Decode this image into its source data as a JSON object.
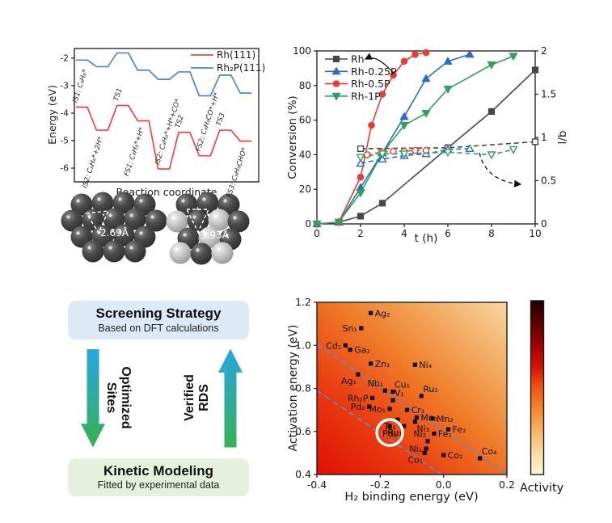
{
  "chart_data": [
    {
      "id": "energy-diagram",
      "type": "line",
      "xlabel": "Reaction coordinate",
      "ylabel": "Energy (eV)",
      "ylim": [
        -6.5,
        -1.65
      ],
      "yticks": [
        "-2",
        "-3",
        "-4",
        "-5",
        "-6"
      ],
      "legend_position": "top-right",
      "series": [
        {
          "name": "Rh(111)",
          "color": "#f14544",
          "values": [
            -3.78,
            -4.62,
            -3.72,
            -4.28,
            -6.03,
            -4.7,
            -5.55,
            -4.62,
            -5.02
          ],
          "step_labels": [
            {
              "text": "IS1: C₈H₈*",
              "pos": "above"
            },
            {
              "text": "IS2: C₈H₈*+2H*",
              "pos": "below"
            },
            {
              "text": "TS1",
              "pos": "above"
            },
            {
              "text": "FS1: C₈H₉*+H*",
              "pos": "below"
            },
            {
              "text": "IS2: C₈H₉*+H*+CO*",
              "pos": "above"
            },
            {
              "text": "TS2",
              "pos": "above"
            },
            {
              "text": "FS2: C₈H₉CO*+H*",
              "pos": "above"
            },
            {
              "text": "TS3",
              "pos": "above"
            },
            {
              "text": "FS3: C₈H₉CHO*",
              "pos": "below"
            }
          ]
        },
        {
          "name": "Rh₂P(111)",
          "color": "#4a86d8",
          "values": [
            -2.07,
            -2.31,
            -1.81,
            -2.44,
            -2.77,
            -2.5,
            -3.37,
            -2.62,
            -3.27
          ]
        }
      ]
    },
    {
      "id": "kinetics",
      "type": "line",
      "xlabel": "t (h)",
      "ylabel": "Conversion (%)",
      "ylabel2": "l/b",
      "xlim": [
        0,
        10
      ],
      "xticks": [
        "0",
        "2",
        "4",
        "6",
        "8",
        "10"
      ],
      "ylim": [
        0,
        100
      ],
      "yticks": [
        "0",
        "20",
        "40",
        "60",
        "80",
        "100"
      ],
      "y2lim": [
        0,
        2
      ],
      "y2ticks": [
        "0",
        "0.5",
        "1",
        "1.5",
        "2"
      ],
      "legend": [
        "Rh",
        "Rh-0.25P",
        "Rh-0.5P",
        "Rh-1P"
      ],
      "series": [
        {
          "name": "Rh",
          "color": "#474747",
          "marker": "square",
          "fill": "filled",
          "axis": "left",
          "x": [
            0,
            1,
            2,
            3,
            6,
            8,
            10
          ],
          "y": [
            0,
            1,
            4.5,
            12,
            44,
            65,
            89
          ]
        },
        {
          "name": "Rh-0.25P",
          "color": "#2a6cc0",
          "marker": "triangle-up",
          "fill": "filled",
          "axis": "left",
          "x": [
            0,
            1,
            2,
            3,
            4,
            5,
            6,
            7
          ],
          "y": [
            0,
            1,
            21,
            41,
            62,
            84,
            94,
            98
          ]
        },
        {
          "name": "Rh-0.5P",
          "color": "#e63e36",
          "marker": "circle",
          "fill": "filled",
          "axis": "left",
          "x": [
            0,
            1,
            2,
            2.5,
            3,
            3.5,
            4,
            4.5,
            5
          ],
          "y": [
            0,
            1,
            27,
            57,
            75,
            86,
            94,
            98,
            99
          ]
        },
        {
          "name": "Rh-1P",
          "color": "#31a05f",
          "marker": "triangle-down",
          "fill": "filled",
          "axis": "left",
          "x": [
            0,
            1,
            2,
            3,
            4,
            5,
            6,
            8,
            9
          ],
          "y": [
            0,
            1,
            18,
            41,
            57,
            64,
            78,
            92,
            97
          ]
        },
        {
          "name": "Rh l/b",
          "color": "#474747",
          "marker": "square",
          "fill": "open",
          "axis": "right",
          "x": [
            2,
            6,
            10
          ],
          "y": [
            0.87,
            0.88,
            0.95
          ]
        },
        {
          "name": "Rh-0.25P l/b",
          "color": "#2a6cc0",
          "marker": "triangle-up",
          "fill": "open",
          "axis": "right",
          "x": [
            2,
            3,
            4,
            5,
            6,
            7
          ],
          "y": [
            0.7,
            0.75,
            0.79,
            0.81,
            0.86,
            0.87
          ]
        },
        {
          "name": "Rh-0.5P l/b",
          "color": "#e63e36",
          "marker": "circle",
          "fill": "open",
          "axis": "right",
          "x": [
            2.3,
            3,
            3.5,
            4,
            4.5,
            5
          ],
          "y": [
            0.8,
            0.83,
            0.84,
            0.84,
            0.85,
            0.85
          ]
        },
        {
          "name": "Rh-1P l/b",
          "color": "#31a05f",
          "marker": "triangle-down",
          "fill": "open",
          "axis": "right",
          "x": [
            2,
            3,
            4,
            6,
            8,
            9
          ],
          "y": [
            0.77,
            0.81,
            0.81,
            0.83,
            0.8,
            0.86
          ]
        }
      ]
    },
    {
      "id": "activity-map",
      "type": "scatter",
      "xlabel": "H₂ binding energy (eV)",
      "ylabel": "Activation energy (eV)",
      "xlim": [
        -0.4,
        0.2
      ],
      "xticks": [
        "-0.4",
        "-0.2",
        "0.0",
        "0.2"
      ],
      "ylim": [
        0.4,
        1.2
      ],
      "yticks": [
        "0.4",
        "0.6",
        "0.8",
        "1.0",
        "1.2"
      ],
      "colorbar_label": "Activity",
      "heatmap_colors": {
        "high_activity": "#e01004",
        "mid": "#ef7b28",
        "low_activity": "#f8d7a4"
      },
      "guide_lines": [
        {
          "x1": -0.4,
          "y1": 1.005,
          "x2": 0.2,
          "y2": 0.405
        },
        {
          "x1": -0.4,
          "y1": 0.79,
          "x2": -0.005,
          "y2": 0.4
        }
      ],
      "points": [
        {
          "label": "Ag₂",
          "x": -0.23,
          "y": 1.15,
          "side": "right"
        },
        {
          "label": "Sn₁",
          "x": -0.26,
          "y": 1.08,
          "side": "left"
        },
        {
          "label": "Cd₁",
          "x": -0.31,
          "y": 1.0,
          "side": "left"
        },
        {
          "label": "Ga₁",
          "x": -0.295,
          "y": 0.98,
          "side": "right"
        },
        {
          "label": "Zn₁",
          "x": -0.23,
          "y": 0.915,
          "side": "right"
        },
        {
          "label": "Ni₄",
          "x": -0.09,
          "y": 0.91,
          "side": "right"
        },
        {
          "label": "Ag₁",
          "x": -0.27,
          "y": 0.865,
          "side": "below-left"
        },
        {
          "label": "Nb₁",
          "x": -0.185,
          "y": 0.79,
          "side": "above-left"
        },
        {
          "label": "Cu₁",
          "x": -0.16,
          "y": 0.785,
          "side": "above-right"
        },
        {
          "label": "Ru₂",
          "x": -0.07,
          "y": 0.765,
          "side": "above-right"
        },
        {
          "label": "Rh₂P",
          "x": -0.225,
          "y": 0.755,
          "side": "left"
        },
        {
          "label": "V₁",
          "x": -0.16,
          "y": 0.745,
          "side": "above-right"
        },
        {
          "label": "Pd₂",
          "x": -0.235,
          "y": 0.715,
          "side": "left"
        },
        {
          "label": "Mo₁",
          "x": -0.17,
          "y": 0.705,
          "side": "left"
        },
        {
          "label": "Cr₁",
          "x": -0.115,
          "y": 0.7,
          "side": "right"
        },
        {
          "label": "Mn₁",
          "x": -0.085,
          "y": 0.665,
          "side": "right"
        },
        {
          "label": "Mn₂",
          "x": -0.035,
          "y": 0.66,
          "side": "right"
        },
        {
          "label": "Tc₁",
          "x": -0.145,
          "y": 0.655,
          "side": "below-left"
        },
        {
          "label": "Ni₃",
          "x": -0.09,
          "y": 0.645,
          "side": "below-right"
        },
        {
          "label": "Ru₁",
          "x": -0.125,
          "y": 0.625,
          "side": "below-left"
        },
        {
          "label": "Pd₁",
          "x": -0.17,
          "y": 0.625,
          "side": "below",
          "circled": true
        },
        {
          "label": "Fe₂",
          "x": 0.015,
          "y": 0.61,
          "side": "right"
        },
        {
          "label": "Fe₁",
          "x": -0.03,
          "y": 0.59,
          "side": "right"
        },
        {
          "label": "Ni₂",
          "x": -0.05,
          "y": 0.555,
          "side": "above-left"
        },
        {
          "label": "Ni₁",
          "x": -0.055,
          "y": 0.52,
          "side": "left"
        },
        {
          "label": "Co₁",
          "x": -0.06,
          "y": 0.5,
          "side": "below-left"
        },
        {
          "label": "Co₂",
          "x": 0.0,
          "y": 0.49,
          "side": "right"
        },
        {
          "label": "Co₄",
          "x": 0.115,
          "y": 0.475,
          "side": "above-right"
        }
      ]
    }
  ],
  "structures": [
    {
      "name": "Rh(111) cluster",
      "distance_label": "2.69Å"
    },
    {
      "name": "Rh₂P(111) cluster",
      "distance_label": "3.93Å"
    }
  ],
  "flow": {
    "top_box": {
      "title": "Screening Strategy",
      "subtitle": "Based on DFT calculations"
    },
    "bottom_box": {
      "title": "Kinetic Modeling",
      "subtitle": "Fitted by experimental data"
    },
    "down_arrow_label": [
      "Optimized",
      "Sites"
    ],
    "up_arrow_label": [
      "Verified",
      "RDS"
    ]
  }
}
